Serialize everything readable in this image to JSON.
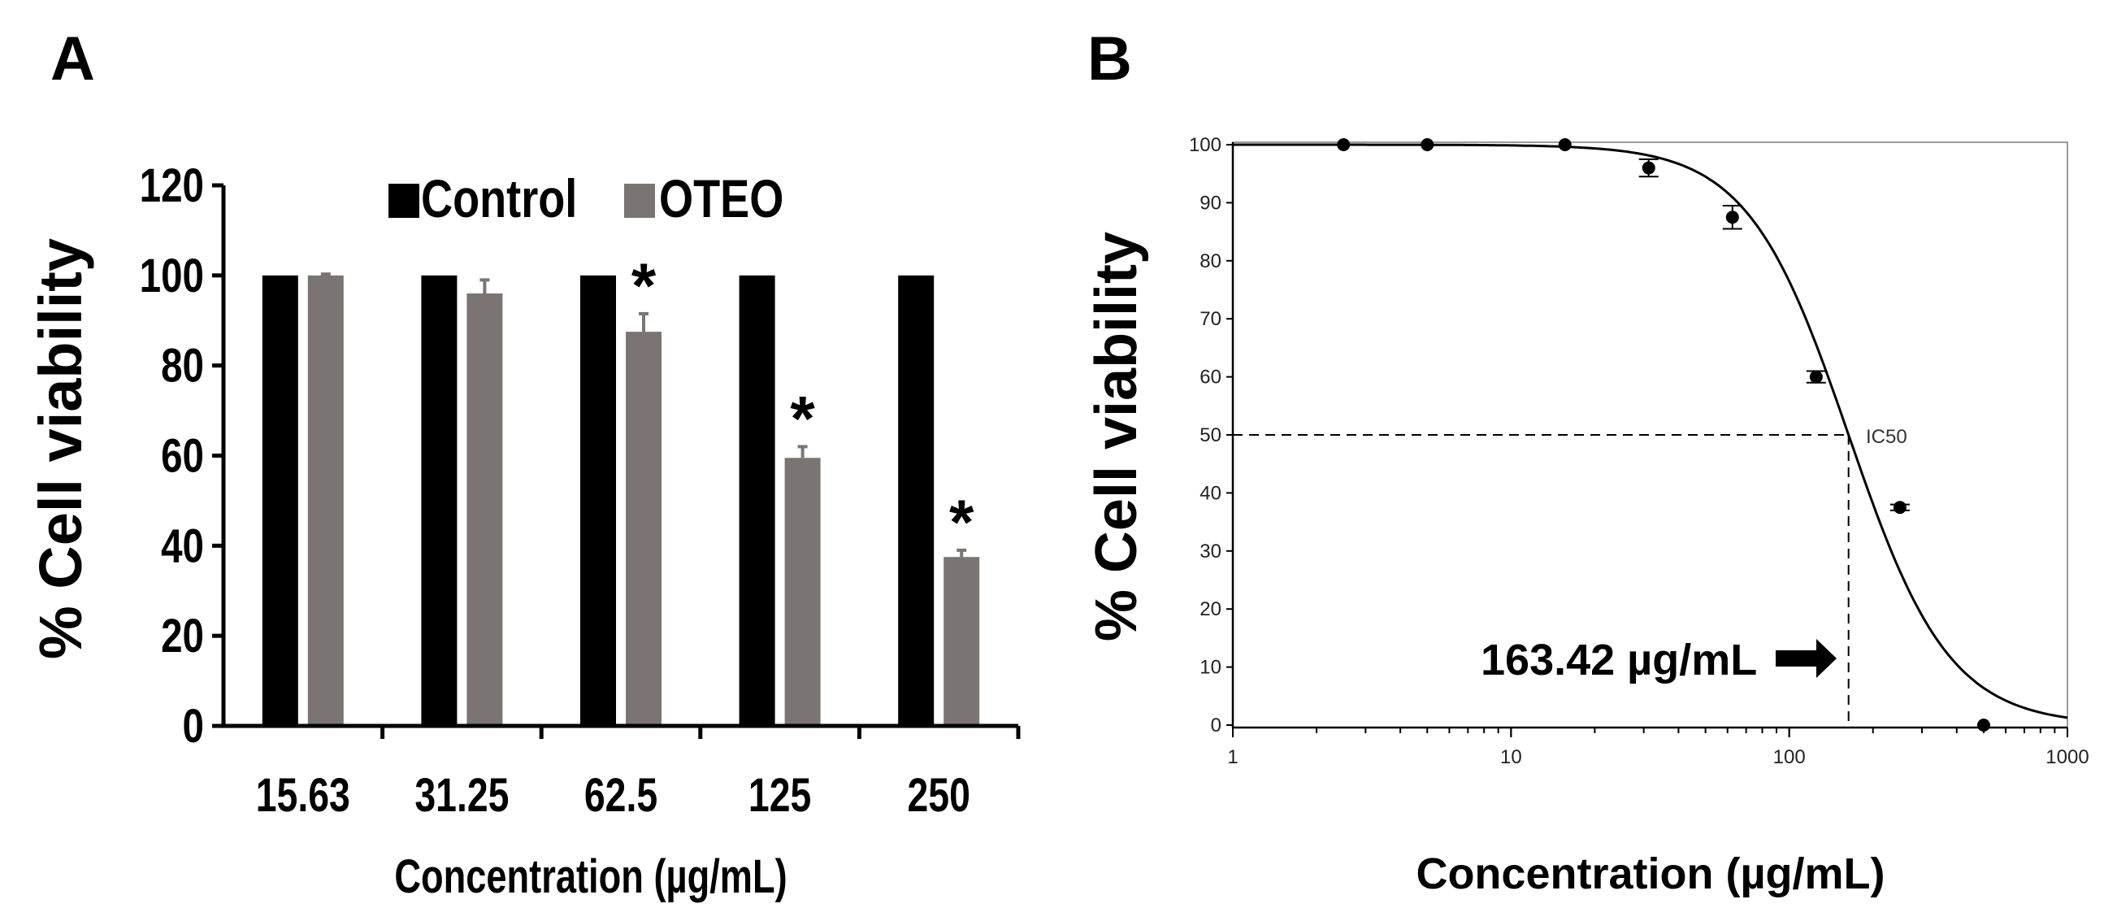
{
  "panels": {
    "a_label": "A",
    "b_label": "B"
  },
  "colors": {
    "control": "#000000",
    "oteo": "#7a7573",
    "axis": "#000000",
    "curve": "#000000"
  },
  "chart_data": [
    {
      "panel": "A",
      "type": "bar",
      "xlabel": "Concentration (µg/mL)",
      "ylabel": "% Cell viability",
      "ylim": [
        0,
        120
      ],
      "yticks": [
        "0",
        "20",
        "40",
        "60",
        "80",
        "100",
        "120"
      ],
      "categories": [
        "15.63",
        "31.25",
        "62.5",
        "125",
        "250"
      ],
      "legend_position": "top",
      "series": [
        {
          "name": "Control",
          "values": [
            100,
            100,
            100,
            100,
            100
          ]
        },
        {
          "name": "OTEO",
          "values": [
            100,
            96,
            87.5,
            59.5,
            37.5
          ],
          "errors": [
            0.3,
            3,
            4,
            2.5,
            1.5
          ]
        }
      ],
      "significance": [
        "",
        "",
        "*",
        "*",
        "*"
      ]
    },
    {
      "panel": "B",
      "type": "scatter",
      "xlabel": "Concentration (µg/mL)",
      "ylabel": "% Cell viability",
      "xscale": "log",
      "xlim": [
        1,
        1000
      ],
      "xticks": [
        "1",
        "10",
        "100",
        "1000"
      ],
      "ylim": [
        0,
        100
      ],
      "yticks": [
        "0",
        "10",
        "20",
        "30",
        "40",
        "50",
        "60",
        "70",
        "80",
        "90",
        "100"
      ],
      "grid": false,
      "points": {
        "x": [
          2.5,
          5,
          15.63,
          31.25,
          62.5,
          125,
          250,
          500
        ],
        "y": [
          100,
          100,
          100,
          96,
          87.5,
          60,
          37.5,
          0
        ],
        "errors": [
          0,
          0,
          0,
          1.5,
          2,
          1,
          0.5,
          0
        ]
      },
      "fit_curve": {
        "ic50": 163.42,
        "hill": 2.4,
        "top": 100,
        "bottom": 0
      },
      "ic50_label": "IC50",
      "ic50_value_label": "163.42 µg/mL"
    }
  ]
}
